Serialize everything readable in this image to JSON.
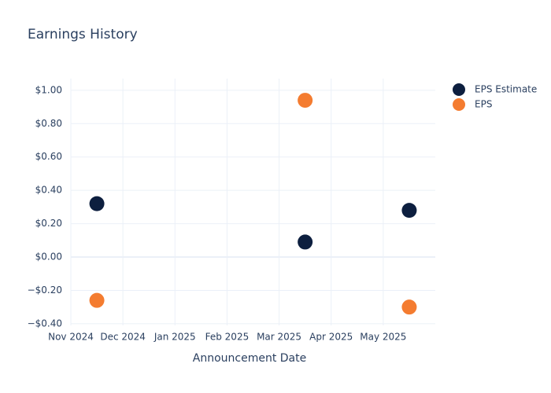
{
  "chart_data": {
    "type": "scatter",
    "title": "Earnings History",
    "x_label": "Announcement Date",
    "series": [
      {
        "name": "EPS Estimate",
        "color": "#0d1f3f",
        "x": [
          "2024-11",
          "2025-03",
          "2025-05"
        ],
        "values": [
          0.32,
          0.09,
          0.28
        ]
      },
      {
        "name": "EPS",
        "color": "#f47c30",
        "x": [
          "2024-11",
          "2025-03",
          "2025-05"
        ],
        "values": [
          -0.26,
          0.94,
          -0.3
        ]
      }
    ],
    "xlim": [
      "2024-11",
      "2025-06"
    ],
    "xticks": [
      {
        "value": "2024-11",
        "label": "Nov 2024"
      },
      {
        "value": "2024-12",
        "label": "Dec 2024"
      },
      {
        "value": "2025-01",
        "label": "Jan 2025"
      },
      {
        "value": "2025-02",
        "label": "Feb 2025"
      },
      {
        "value": "2025-03",
        "label": "Mar 2025"
      },
      {
        "value": "2025-04",
        "label": "Apr 2025"
      },
      {
        "value": "2025-05",
        "label": "May 2025"
      }
    ],
    "ylim": [
      -0.41,
      1.07
    ],
    "yticks": [
      {
        "value": -0.4,
        "label": "−$0.40"
      },
      {
        "value": -0.2,
        "label": "−$0.20"
      },
      {
        "value": 0,
        "label": "$0.00"
      },
      {
        "value": 0.2,
        "label": "$0.20"
      },
      {
        "value": 0.4,
        "label": "$0.40"
      },
      {
        "value": 0.6,
        "label": "$0.60"
      },
      {
        "value": 0.8,
        "label": "$0.80"
      },
      {
        "value": 1,
        "label": "$1.00"
      }
    ],
    "grid": true,
    "legend": "top-right"
  }
}
